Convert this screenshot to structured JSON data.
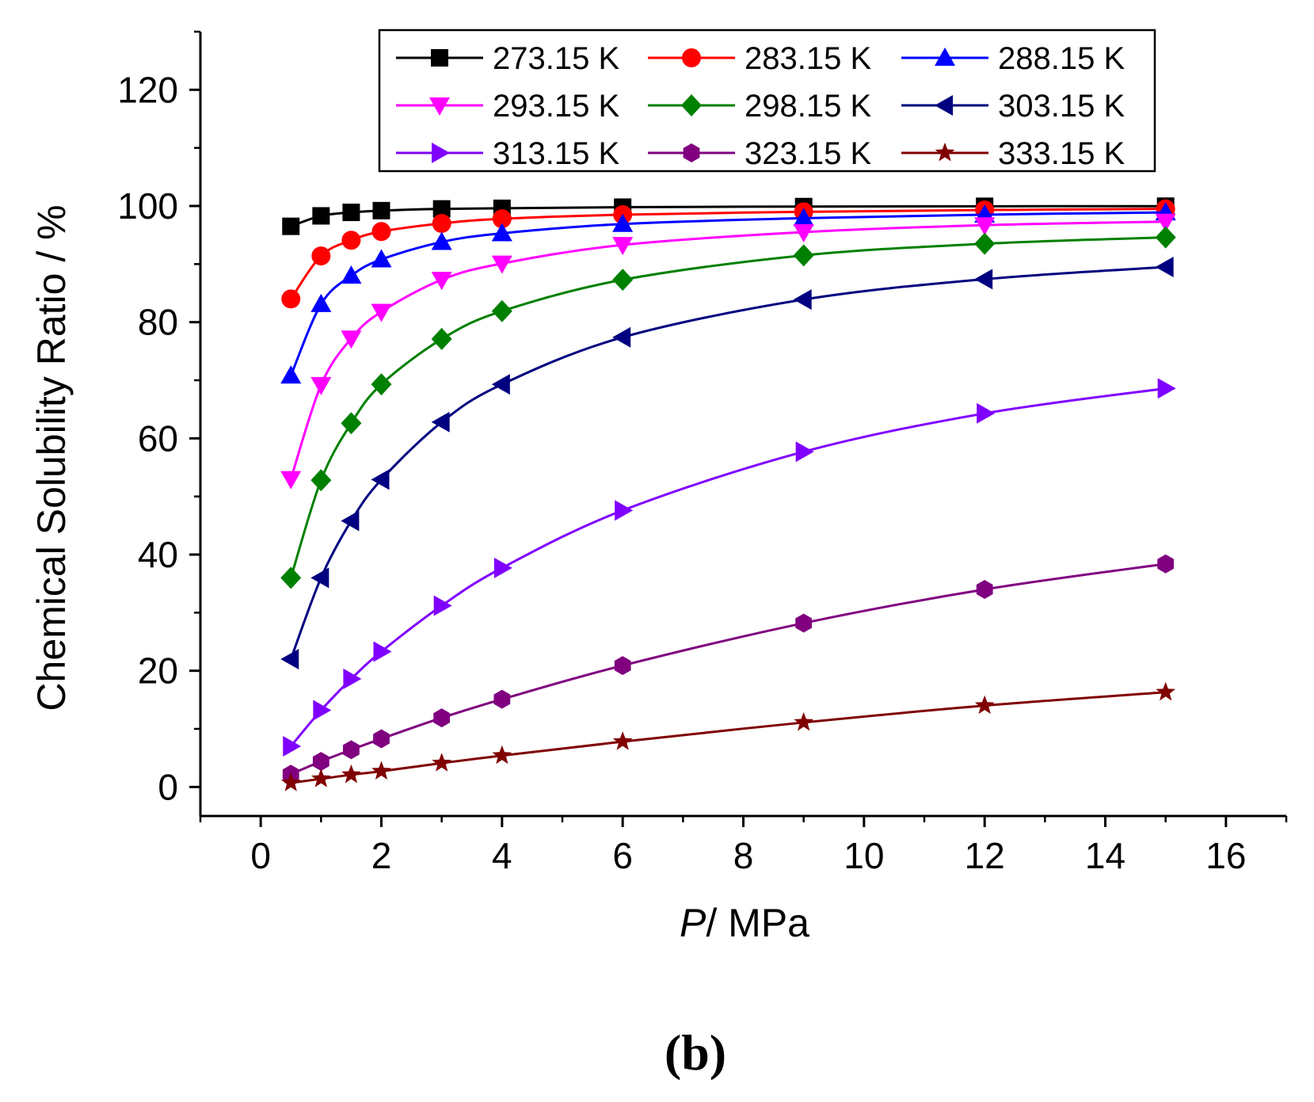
{
  "chart_data": {
    "type": "line",
    "xlabel_italic": "P",
    "xlabel_rest": "/ MPa",
    "ylabel": "Chemical Solubility Ratio / %",
    "xlim": [
      -1,
      17
    ],
    "ylim": [
      -5,
      130
    ],
    "x_ticks": [
      0,
      2,
      4,
      6,
      8,
      10,
      12,
      14,
      16
    ],
    "y_ticks": [
      0,
      20,
      40,
      60,
      80,
      100,
      120
    ],
    "x": [
      0.5,
      1,
      1.5,
      2,
      3,
      4,
      6,
      9,
      12,
      15
    ],
    "legend_position": "top",
    "series": [
      {
        "name": "273.15 K",
        "color": "#000000",
        "marker": "square",
        "values": [
          96.5,
          98.3,
          98.9,
          99.2,
          99.5,
          99.6,
          99.8,
          99.9,
          99.95,
          99.97
        ]
      },
      {
        "name": "283.15 K",
        "color": "#ff0000",
        "marker": "circle",
        "values": [
          84.0,
          91.4,
          94.1,
          95.6,
          97.0,
          97.8,
          98.5,
          99.0,
          99.3,
          99.5
        ]
      },
      {
        "name": "288.15 K",
        "color": "#0000ff",
        "marker": "triangle-up",
        "values": [
          70.8,
          83.1,
          88.0,
          90.8,
          93.8,
          95.3,
          96.9,
          97.9,
          98.5,
          98.9
        ]
      },
      {
        "name": "293.15 K",
        "color": "#ff00ff",
        "marker": "triangle-down",
        "values": [
          53.0,
          69.2,
          77.2,
          81.8,
          87.3,
          90.1,
          93.3,
          95.5,
          96.7,
          97.3
        ]
      },
      {
        "name": "298.15 K",
        "color": "#008000",
        "marker": "diamond",
        "values": [
          36.0,
          52.8,
          62.6,
          69.3,
          77.1,
          81.9,
          87.3,
          91.5,
          93.5,
          94.6
        ]
      },
      {
        "name": "303.15 K",
        "color": "#000080",
        "marker": "triangle-left",
        "values": [
          22.0,
          36.0,
          45.8,
          52.9,
          62.8,
          69.3,
          77.4,
          83.9,
          87.4,
          89.5
        ]
      },
      {
        "name": "313.15 K",
        "color": "#8000ff",
        "marker": "triangle-right",
        "values": [
          7.0,
          13.2,
          18.6,
          23.3,
          31.2,
          37.7,
          47.6,
          57.7,
          64.3,
          68.6
        ]
      },
      {
        "name": "323.15 K",
        "color": "#800080",
        "marker": "hexagon",
        "values": [
          2.2,
          4.4,
          6.4,
          8.3,
          11.9,
          15.1,
          20.9,
          28.2,
          34.0,
          38.4
        ]
      },
      {
        "name": "333.15 K",
        "color": "#800000",
        "marker": "star",
        "values": [
          0.7,
          1.4,
          2.1,
          2.7,
          4.1,
          5.4,
          7.8,
          11.1,
          14.0,
          16.3
        ]
      }
    ]
  },
  "panel_label": "(b)"
}
